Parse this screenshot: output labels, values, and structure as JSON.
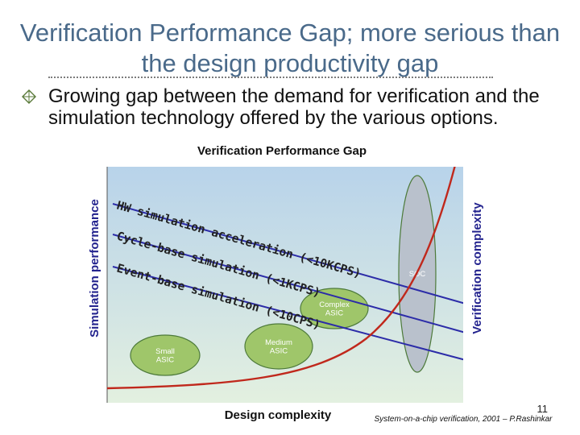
{
  "slide": {
    "title": "Verification Performance Gap; more serious than the design productivity gap",
    "bullet": "Growing gap between the demand for verification and the simulation technology offered by the various options.",
    "page_number": "11",
    "source": "System-on-a-chip verification, 2001 – P.Rashinkar"
  },
  "chart_data": {
    "type": "line",
    "title": "Verification Performance Gap",
    "xlabel": "Design complexity",
    "ylabel": "Simulation performance",
    "ylabel_right": "Verification complexity",
    "series": [
      {
        "name": "HW simulation acceleration (<10KCPS)",
        "label_lines": [
          "HW simulation acceleration (<10KCPS)"
        ]
      },
      {
        "name": "Cycle-based simulation (<1KCPS)",
        "label_lines": [
          "Cycle-base simulation (<1KCPS)"
        ]
      },
      {
        "name": "Event-based simulation (<10CPS)",
        "label_lines": [
          "Event-base simulation (<10CPS)"
        ]
      },
      {
        "name": "Verification complexity curve"
      }
    ],
    "categories": [
      {
        "name": "Small ASIC",
        "lines": [
          "Small",
          "ASIC"
        ]
      },
      {
        "name": "Medium ASIC",
        "lines": [
          "Medium",
          "ASIC"
        ]
      },
      {
        "name": "Complex ASIC",
        "lines": [
          "Complex",
          "ASIC"
        ]
      },
      {
        "name": "SOC",
        "lines": [
          "SOC"
        ]
      }
    ],
    "grid": false,
    "legend": "none",
    "colors": {
      "bg_top": "#b8d3ea",
      "bg_bottom": "#e3f0e0",
      "lines": "#2c2ca8",
      "curve": "#c0281c",
      "ellipse_fill": "#9fc66a",
      "ellipse_stroke": "#4d7a3a",
      "soc_fill": "#b9c1cc",
      "label_text": "#222222"
    }
  }
}
